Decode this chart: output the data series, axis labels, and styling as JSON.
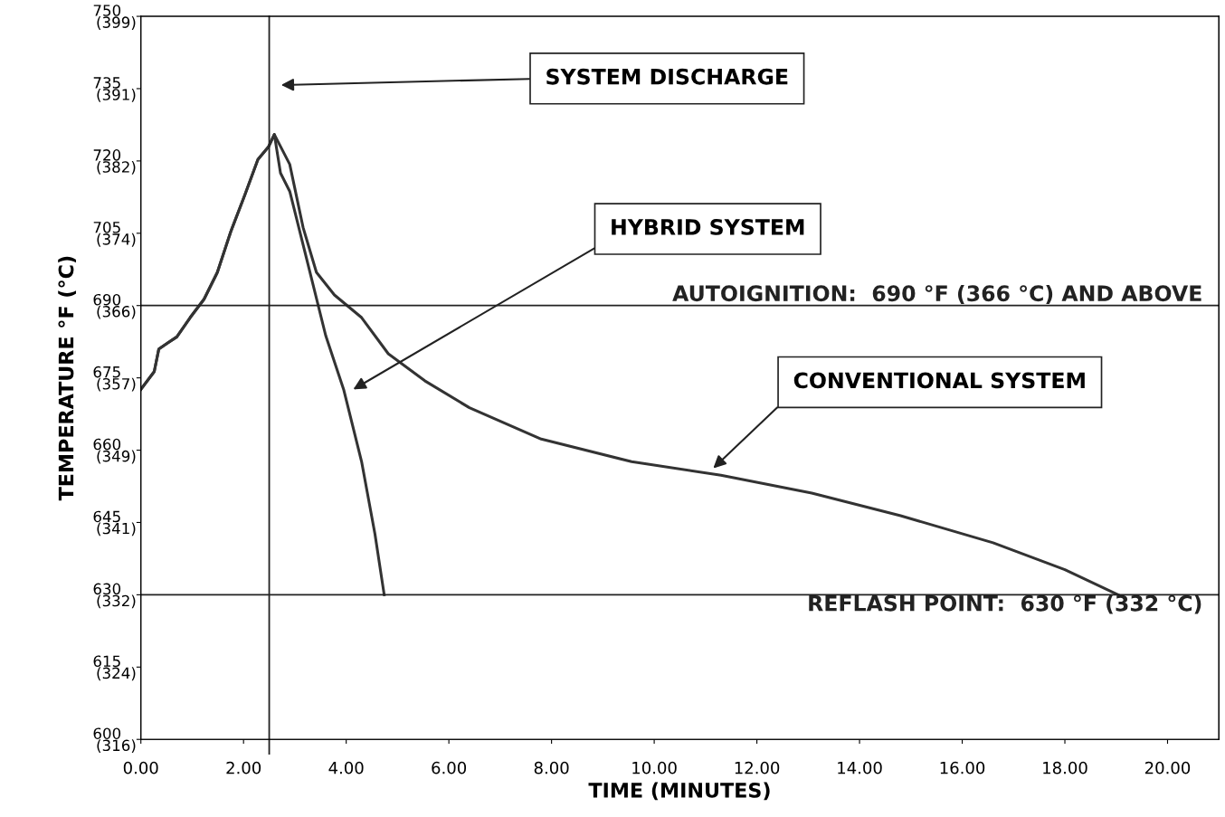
{
  "chart_data": {
    "type": "line",
    "xlabel": "TIME (MINUTES)",
    "ylabel": "TEMPERATURE °F (°C)",
    "xlim": [
      0,
      21
    ],
    "ylim": [
      600,
      750
    ],
    "xticks": [
      {
        "value": 0,
        "label": "0.00"
      },
      {
        "value": 2,
        "label": "2.00"
      },
      {
        "value": 4,
        "label": "4.00"
      },
      {
        "value": 6,
        "label": "6.00"
      },
      {
        "value": 8,
        "label": "8.00"
      },
      {
        "value": 10,
        "label": "10.00"
      },
      {
        "value": 12,
        "label": "12.00"
      },
      {
        "value": 14,
        "label": "14.00"
      },
      {
        "value": 16,
        "label": "16.00"
      },
      {
        "value": 18,
        "label": "18.00"
      },
      {
        "value": 20,
        "label": "20.00"
      }
    ],
    "yticks": [
      600,
      615,
      630,
      645,
      660,
      675,
      690,
      705,
      720,
      735,
      750
    ],
    "y2lim": [
      315.56,
      398.89
    ],
    "y2ticks": [
      {
        "value": 315.56,
        "label": "(316)"
      },
      {
        "value": 323.89,
        "label": "(324)"
      },
      {
        "value": 332.22,
        "label": "(332)"
      },
      {
        "value": 340.56,
        "label": "(341)"
      },
      {
        "value": 348.89,
        "label": "(349)"
      },
      {
        "value": 357.22,
        "label": "(357)"
      },
      {
        "value": 365.56,
        "label": "(366)"
      },
      {
        "value": 373.89,
        "label": "(374)"
      },
      {
        "value": 382.22,
        "label": "(382)"
      },
      {
        "value": 390.56,
        "label": "(391)"
      },
      {
        "value": 398.89,
        "label": "(399)"
      }
    ],
    "grid": false,
    "marker": "none",
    "line_style": "solid",
    "series": [
      {
        "color": "#333333",
        "x": [
          0,
          0.26,
          0.35,
          0.53,
          0.7,
          0.96,
          1.23,
          1.49,
          1.75,
          2.02,
          2.28,
          2.49,
          2.6,
          2.72,
          2.9,
          3.25,
          3.6,
          3.95,
          4.3,
          4.56,
          4.74
        ],
        "values": [
          672.6,
          676.3,
          681,
          682.3,
          683.5,
          687.5,
          691.3,
          696.9,
          705.3,
          712.8,
          720.3,
          723,
          725.5,
          717.5,
          713.7,
          698.8,
          683.8,
          672.6,
          657.6,
          642.6,
          630
        ]
      },
      {
        "color": "#333333",
        "x": [
          0,
          0.26,
          0.35,
          0.53,
          0.7,
          0.96,
          1.23,
          1.49,
          1.75,
          2.02,
          2.28,
          2.49,
          2.6,
          2.9,
          3.16,
          3.42,
          3.77,
          4.3,
          4.82,
          5.53,
          6.4,
          7.8,
          9.56,
          11.3,
          13.07,
          14.8,
          16.6,
          18.0,
          19.04
        ],
        "values": [
          672.6,
          676.3,
          681,
          682.3,
          683.5,
          687.5,
          691.3,
          696.9,
          705.3,
          712.8,
          720.3,
          723,
          725.5,
          719.3,
          706.2,
          696.9,
          692.2,
          687.5,
          680,
          674.4,
          668.8,
          662.3,
          657.6,
          654.8,
          651.1,
          646.4,
          640.8,
          635.2,
          630
        ]
      }
    ],
    "ref_lines": [
      {
        "axis": "x",
        "value": 2.5,
        "color": "#222222"
      },
      {
        "axis": "y",
        "value": 690,
        "label": "AUTOIGNITION:  690 °F (366 °C) AND ABOVE",
        "color": "#222222"
      },
      {
        "axis": "y",
        "value": 630,
        "label": "REFLASH POINT:  630 °F (332 °C)",
        "color": "#222222"
      }
    ],
    "annotations": [
      "SYSTEM DISCHARGE",
      "HYBRID SYSTEM",
      "CONVENTIONAL SYSTEM"
    ]
  }
}
